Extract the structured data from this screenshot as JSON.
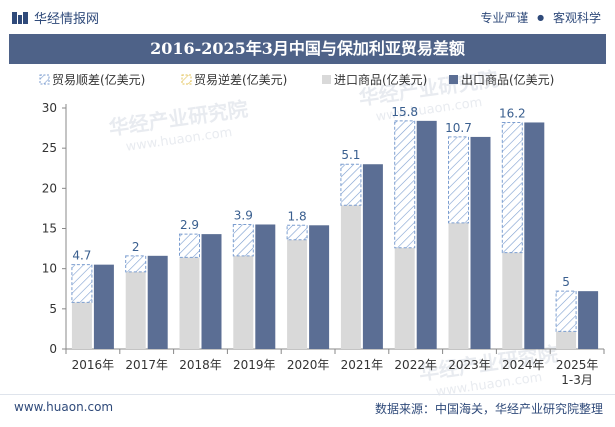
{
  "header": {
    "brand": "华经情报网",
    "tagline_left": "专业严谨",
    "tagline_right": "客观科学",
    "tagline_dot": "●"
  },
  "watermark": {
    "line1": "华经产业研究院",
    "line2": "www.huaon.com"
  },
  "footer": {
    "website": "www.huaon.com",
    "source": "数据来源：中国海关，华经产业研究院整理"
  },
  "colors": {
    "title_bg": "#4e6288",
    "export": "#5b6e94",
    "import": "#d9d9d9",
    "surplus_stroke": "#7c9ed0",
    "deficit_stroke": "#e3c35a",
    "label": "#3a5f8f"
  },
  "chart_data": {
    "type": "bar",
    "title": "2016-2025年3月中国与保加利亚贸易差额",
    "categories": [
      "2016年",
      "2017年",
      "2018年",
      "2019年",
      "2020年",
      "2021年",
      "2022年",
      "2023年",
      "2024年",
      "2025年1-3月"
    ],
    "series": [
      {
        "name": "贸易顺差(亿美元)",
        "values": [
          4.7,
          2,
          2.9,
          3.9,
          1.8,
          5.1,
          15.8,
          10.7,
          16.2,
          5
        ],
        "style": "hatched-outline"
      },
      {
        "name": "贸易逆差(亿美元)",
        "values": [
          0,
          0,
          0,
          0,
          0,
          0,
          0,
          0,
          0,
          0
        ],
        "style": "hatched-outline"
      },
      {
        "name": "进口商品(亿美元)",
        "values": [
          5.8,
          9.6,
          11.4,
          11.6,
          13.6,
          17.9,
          12.6,
          15.7,
          12.0,
          2.2
        ]
      },
      {
        "name": "出口商品(亿美元)",
        "values": [
          10.5,
          11.6,
          14.3,
          15.5,
          15.4,
          23.0,
          28.4,
          26.4,
          28.2,
          7.2
        ]
      }
    ],
    "ylim": [
      0,
      30
    ],
    "yticks": [
      0,
      5,
      10,
      15,
      20,
      25,
      30
    ],
    "legend_position": "top",
    "grid": false
  }
}
